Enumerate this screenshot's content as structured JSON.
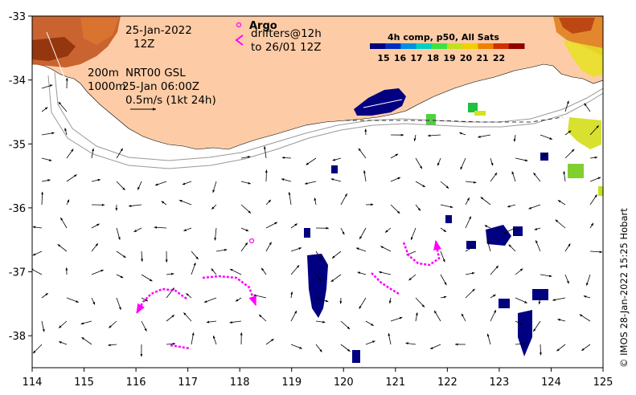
{
  "map": {
    "lon_range": [
      114,
      125
    ],
    "lat_range": [
      -38.5,
      -33
    ],
    "x_ticks": [
      "114",
      "115",
      "116",
      "117",
      "118",
      "119",
      "120",
      "121",
      "122",
      "123",
      "124",
      "125"
    ],
    "y_ticks": [
      "-33",
      "-34",
      "-35",
      "-36",
      "-37",
      "-38"
    ],
    "land_color": "#fdcca6",
    "ocean_color": "#ffffff"
  },
  "annotations": {
    "date": "25-Jan-2022",
    "time": "12Z",
    "contour_200": "200m",
    "contour_1000": "1000m",
    "product": "NRT00 GSL",
    "product_time": "25-Jan 06:00Z",
    "scale_label": "0.5m/s (1kt 24h)"
  },
  "legend": {
    "argo_label": "Argo",
    "drifters_label": "drifters@12h",
    "drifters_until": "to 26/01 12Z",
    "colorbar_title": "4h comp, p50, All Sats",
    "colorbar_ticks": [
      "15",
      "16",
      "17",
      "18",
      "19",
      "20",
      "21",
      "22"
    ],
    "colorbar_colors": [
      "#000080",
      "#0030c0",
      "#0090e0",
      "#00d0c0",
      "#40e040",
      "#c0e020",
      "#f0d000",
      "#f08000",
      "#d03000",
      "#900000"
    ]
  },
  "credit": "© IMOS 28-Jan-2022 15:25 Hobart"
}
